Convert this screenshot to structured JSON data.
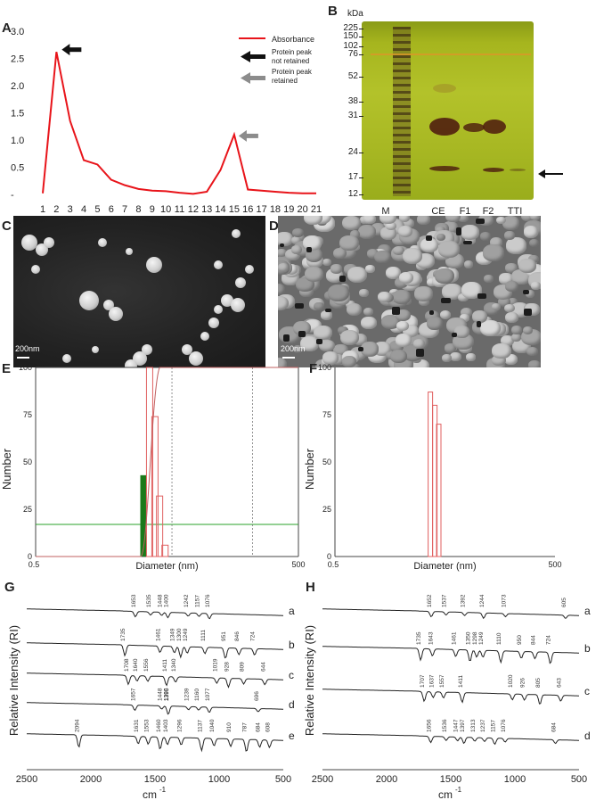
{
  "panel_labels": {
    "A": "A",
    "B": "B",
    "C": "C",
    "D": "D",
    "E": "E",
    "F": "F",
    "G": "G",
    "H": "H"
  },
  "colors": {
    "line": "#e8141a",
    "black_arrow": "#111111",
    "grey_arrow": "#8c8c8c",
    "bar_outline": "#e06060",
    "bar_green": "#1a7a1a",
    "cumulative": "#c06060",
    "hline": "#2aa02a"
  },
  "panelA": {
    "legend_absorbance": "Absorbance",
    "legend_black_l1": "Protein peak",
    "legend_black_l2": "not retained",
    "legend_grey_l1": "Protein peak",
    "legend_grey_l2": "retained",
    "y_ticks": [
      "3.0",
      "2.5",
      "2.0",
      "1.5",
      "1.0",
      "0.5",
      "-"
    ]
  },
  "panelB": {
    "kda": "kDa",
    "markers": [
      "225",
      "150",
      "102",
      "76",
      "52",
      "38",
      "31",
      "24",
      "17",
      "12"
    ],
    "lanes": [
      "M",
      "CE",
      "F1",
      "F2",
      "TTI"
    ]
  },
  "panelC": {
    "scale": "200nm"
  },
  "panelD": {
    "scale": "200nm"
  },
  "panelE": {
    "ylabel": "Number",
    "xlabel": "Diameter (nm)",
    "xmin": "0.5",
    "xmax": "500",
    "y_ticks": [
      "100",
      "75",
      "50",
      "25",
      "0"
    ]
  },
  "panelF": {
    "ylabel": "Number",
    "xlabel": "Diameter (nm)",
    "xmin": "0.5",
    "xmax": "500",
    "y_ticks": [
      "100",
      "75",
      "50",
      "25",
      "0"
    ]
  },
  "panelG": {
    "ylabel": "Relative Intensity (RI)",
    "xlabel": "cm",
    "xlabel_sup": "-1",
    "x_ticks": [
      "2500",
      "2000",
      "1500",
      "1000",
      "500"
    ],
    "curve_labels": [
      "a",
      "b",
      "c",
      "d",
      "e"
    ],
    "peaks": {
      "a": [
        "1653",
        "1535",
        "1448",
        "1400",
        "1242",
        "1157",
        "1076"
      ],
      "b": [
        "1735",
        "1461",
        "1349",
        "1300",
        "1249",
        "1111",
        "951",
        "846",
        "724"
      ],
      "c": [
        "1708",
        "1640",
        "1556",
        "1411",
        "1340",
        "1019",
        "928",
        "809",
        "644"
      ],
      "d": [
        "1657",
        "1395",
        "1448",
        "1398",
        "1239",
        "1160",
        "1077",
        "696"
      ],
      "e": [
        "2094",
        "1631",
        "1553",
        "1460",
        "1403",
        "1296",
        "1137",
        "1040",
        "910",
        "787",
        "684",
        "608"
      ]
    }
  },
  "panelH": {
    "ylabel": "Relative Intensity (RI)",
    "xlabel": "cm",
    "xlabel_sup": "-1",
    "x_ticks": [
      "2500",
      "2000",
      "1500",
      "1000",
      "500"
    ],
    "curve_labels": [
      "a",
      "b",
      "c",
      "d"
    ],
    "peaks": {
      "a": [
        "1652",
        "1537",
        "1392",
        "1244",
        "1073",
        "605"
      ],
      "b": [
        "1735",
        "1643",
        "1461",
        "1350",
        "1298",
        "1249",
        "1110",
        "950",
        "844",
        "724"
      ],
      "c": [
        "1707",
        "1637",
        "1557",
        "1411",
        "1020",
        "926",
        "805",
        "643"
      ],
      "d": [
        "1656",
        "1536",
        "1447",
        "1397",
        "1313",
        "1237",
        "1157",
        "1076",
        "684"
      ]
    }
  },
  "chart_data": [
    {
      "type": "line",
      "panel": "A",
      "x": [
        1,
        2,
        3,
        4,
        5,
        6,
        7,
        8,
        9,
        10,
        11,
        12,
        13,
        14,
        15,
        16,
        17,
        18,
        19,
        20,
        21
      ],
      "series": [
        {
          "name": "Absorbance",
          "values": [
            0.02,
            2.62,
            1.35,
            0.63,
            0.55,
            0.27,
            0.17,
            0.1,
            0.07,
            0.06,
            0.03,
            0.01,
            0.05,
            0.45,
            1.1,
            0.09,
            0.07,
            0.05,
            0.03,
            0.02,
            0.02
          ]
        }
      ],
      "ylim": [
        0,
        3.0
      ],
      "annotations": [
        "Protein peak not retained @ x=2",
        "Protein peak retained @ x=15"
      ]
    },
    {
      "type": "bar",
      "panel": "E",
      "xlabel": "Diameter (nm)",
      "ylabel": "Number",
      "xscale": "log",
      "xlim": [
        0.5,
        500
      ],
      "ylim": [
        0,
        100
      ],
      "bars_outline": [
        {
          "x": 10,
          "value": 100
        },
        {
          "x": 11.5,
          "value": 74
        },
        {
          "x": 13,
          "value": 32
        },
        {
          "x": 15,
          "value": 6
        }
      ],
      "bars_green": [
        {
          "x": 8.5,
          "value": 43
        }
      ],
      "cumulative_line": true,
      "hline": 17
    },
    {
      "type": "bar",
      "panel": "F",
      "xlabel": "Diameter (nm)",
      "ylabel": "Number",
      "xscale": "log",
      "xlim": [
        0.5,
        500
      ],
      "ylim": [
        0,
        100
      ],
      "bars_outline": [
        {
          "x": 10,
          "value": 87
        },
        {
          "x": 11.5,
          "value": 80
        },
        {
          "x": 13,
          "value": 70
        }
      ]
    }
  ]
}
